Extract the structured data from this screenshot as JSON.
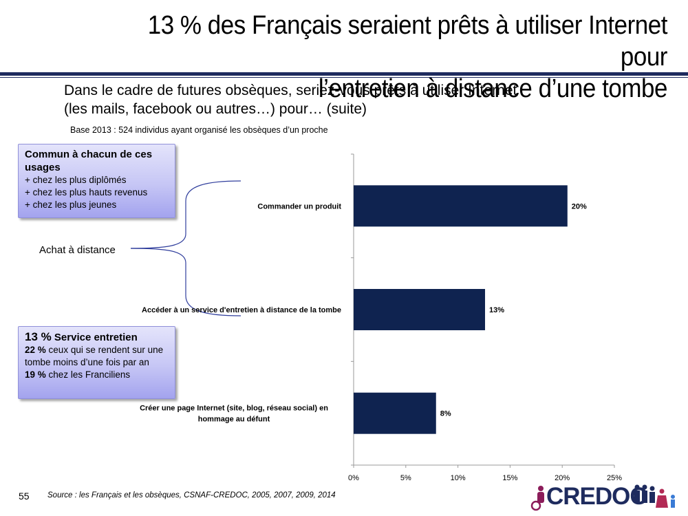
{
  "title_line1": "13 % des Français seraient prêts à utiliser Internet pour",
  "title_line2": "l’entretien à distance d’une tombe",
  "question_line1": "Dans le cadre de futures obsèques, seriez-vous prêts à utiliser Internet",
  "question_line2": "(les mails, facebook ou autres…) pour… (suite)",
  "base": "Base 2013 : 524 individus ayant organisé les obsèques d’un proche",
  "box1": {
    "heading": "Commun à chacun de ces usages",
    "lines": [
      "+ chez les plus diplômés",
      "+ chez les plus hauts revenus",
      "+ chez les plus jeunes"
    ]
  },
  "achat_label": "Achat à distance",
  "box2": {
    "pct": "13 %",
    "heading": "Service entretien",
    "line1_pct": "22 %",
    "line1_text": "ceux qui se rendent sur une tombe moins d’une fois par an",
    "line2_pct": "19 %",
    "line2_text": "chez les Franciliens"
  },
  "chart_data": {
    "type": "bar",
    "orientation": "horizontal",
    "categories": [
      "Commander un produit",
      "Accéder à un service d'entretien à distance de la tombe",
      "Créer une page Internet (site, blog, réseau social) en hommage au défunt"
    ],
    "category_lines": [
      [
        "Commander un produit"
      ],
      [
        "Accéder à un service d'entretien à distance de la tombe"
      ],
      [
        "Créer une page Internet (site, blog, réseau social) en",
        "hommage au défunt"
      ]
    ],
    "values": [
      20.5,
      12.6,
      7.9
    ],
    "data_labels": [
      "20%",
      "13%",
      "8%"
    ],
    "xlim": [
      0,
      25
    ],
    "xticks": [
      "0%",
      "5%",
      "10%",
      "15%",
      "20%",
      "25%"
    ],
    "bar_color": "#0f2350",
    "grid": false
  },
  "source": "Source : les Français et les obsèques, CSNAF-CREDOC, 2005, 2007, 2009, 2014",
  "page_number": "55",
  "logo_text": "CREDOC"
}
